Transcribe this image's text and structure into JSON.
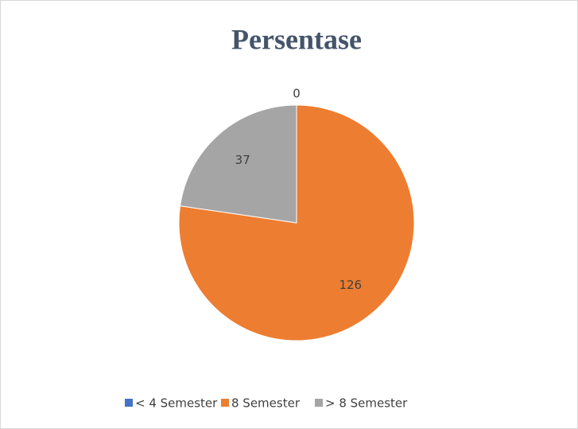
{
  "chart_data": {
    "type": "pie",
    "title": "Persentase",
    "categories": [
      "< 4 Semester",
      "8 Semester",
      "> 8 Semester"
    ],
    "values": [
      0,
      126,
      37
    ],
    "colors": [
      "#4472c4",
      "#ed7d31",
      "#a5a5a5"
    ],
    "legend": "bottom"
  }
}
